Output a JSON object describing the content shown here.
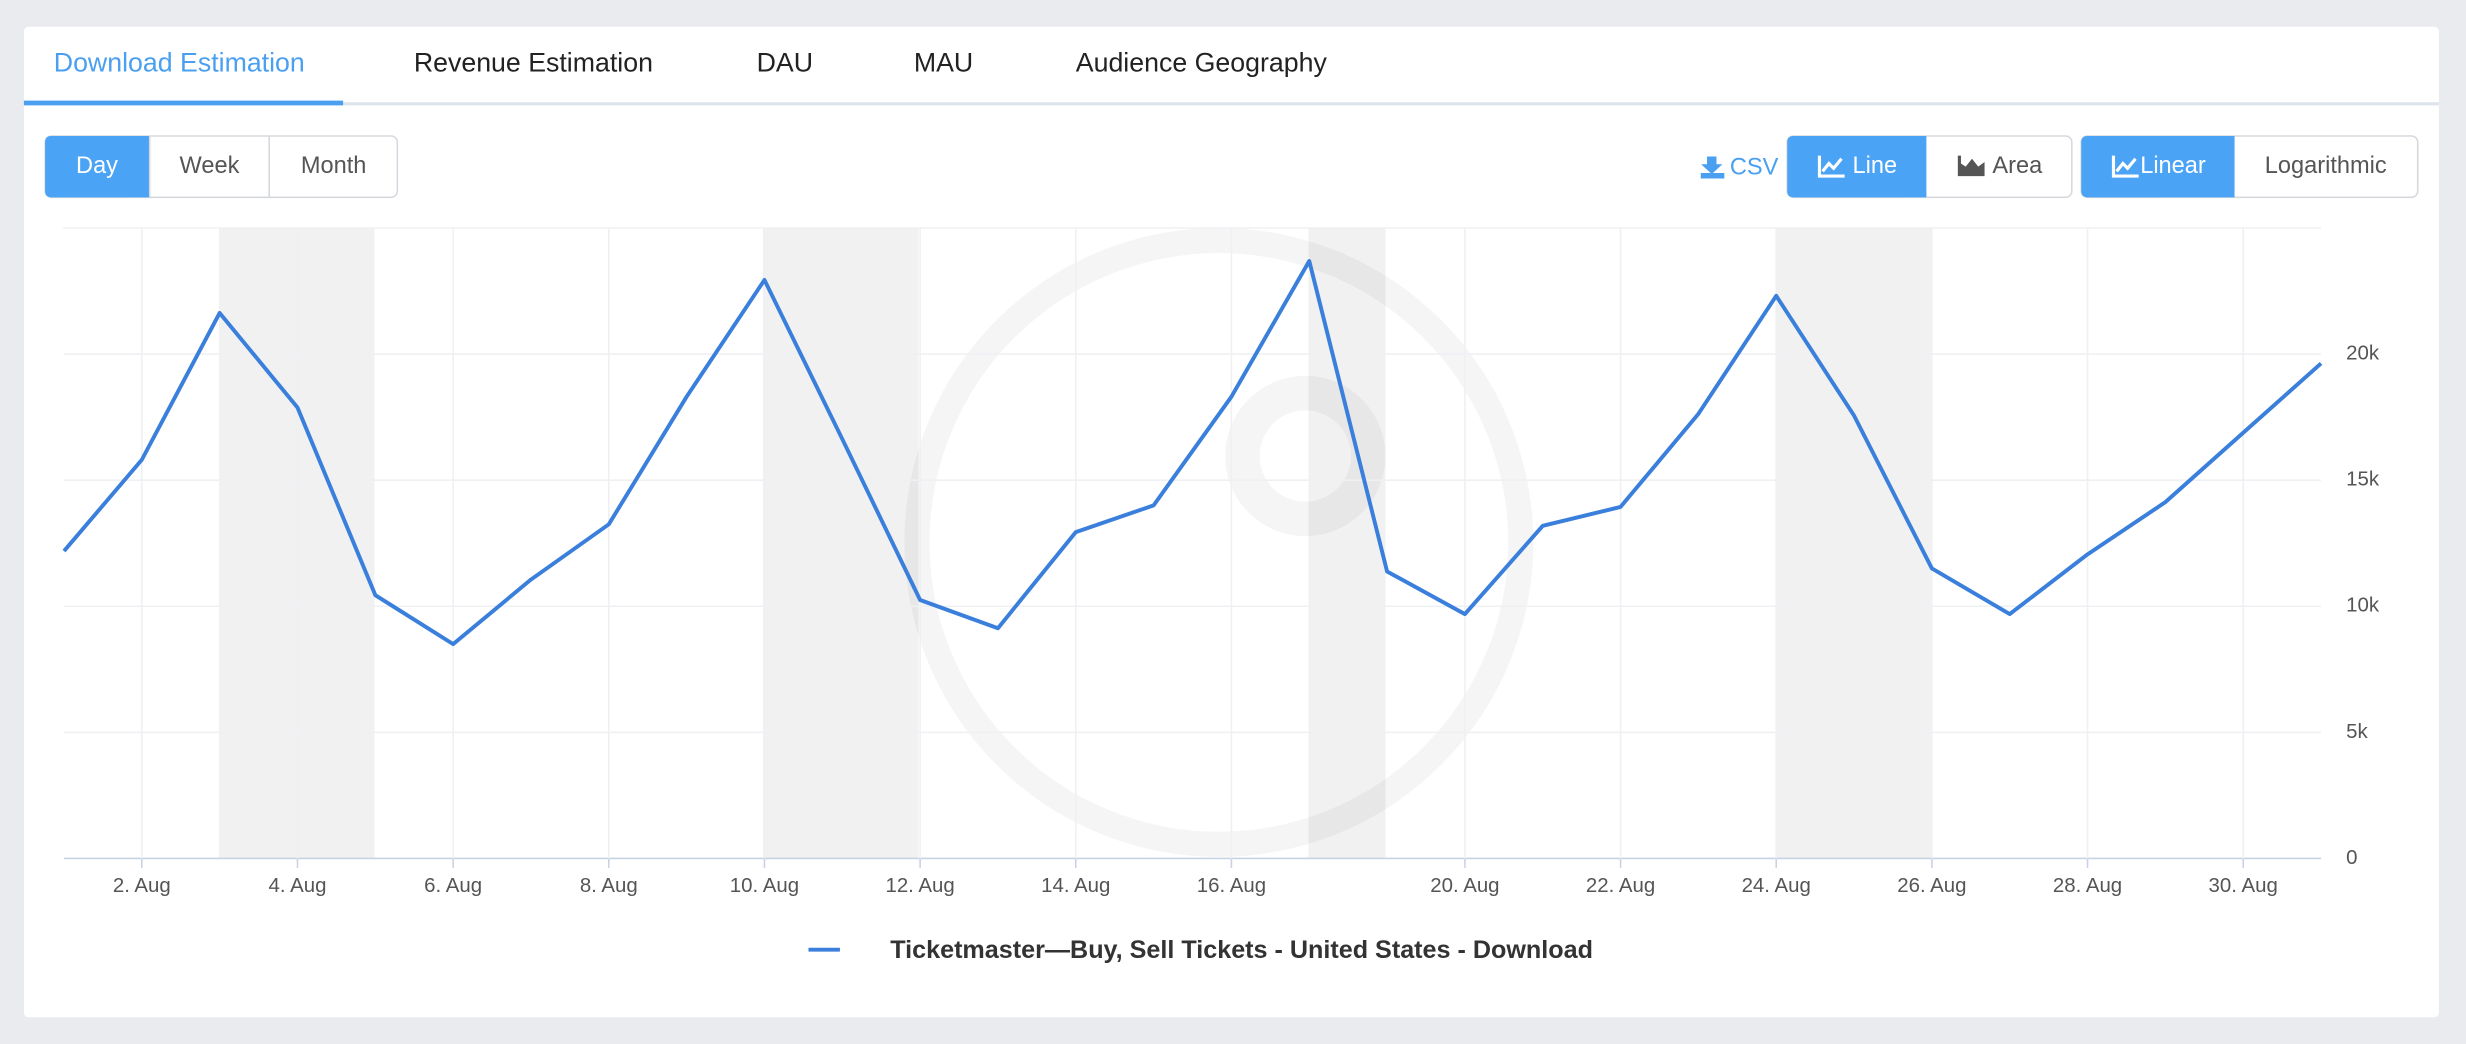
{
  "tabs": [
    "Download Estimation",
    "Revenue Estimation",
    "DAU",
    "MAU",
    "Audience Geography"
  ],
  "period_buttons": [
    "Day",
    "Week",
    "Month"
  ],
  "export": "CSV",
  "chart_style_buttons": [
    "Line",
    "Area"
  ],
  "scale_buttons": [
    "Linear",
    "Logarithmic"
  ],
  "chart_data": {
    "type": "line",
    "categories": [
      null,
      "2. Aug",
      null,
      "4. Aug",
      null,
      "6. Aug",
      null,
      "8. Aug",
      null,
      "10. Aug",
      null,
      "12. Aug",
      null,
      "14. Aug",
      null,
      "16. Aug",
      null,
      null,
      "20. Aug",
      null,
      "22. Aug",
      null,
      "24. Aug",
      null,
      "26. Aug",
      null,
      "28. Aug",
      null,
      "30. Aug",
      null
    ],
    "series": [
      {
        "name": "Ticketmaster—Buy, Sell Tickets - United States - Download",
        "color": "#3a7fdb",
        "values": [
          12190,
          15810,
          21630,
          17880,
          10440,
          8500,
          11060,
          13250,
          18310,
          22940,
          16630,
          10250,
          9130,
          12940,
          14000,
          18310,
          23690,
          11380,
          9690,
          13190,
          13940,
          17630,
          22310,
          17560,
          11500,
          9690,
          12060,
          14130,
          16880,
          19630
        ]
      }
    ],
    "ylim": [
      0,
      25000
    ],
    "yticks": [
      0,
      {
        "value": 5000,
        "label": "5k"
      },
      {
        "value": 10000,
        "label": "10k"
      },
      {
        "value": 15000,
        "label": "15k"
      },
      {
        "value": 20000,
        "label": "20k"
      }
    ],
    "grid": true,
    "log_scale": false
  }
}
